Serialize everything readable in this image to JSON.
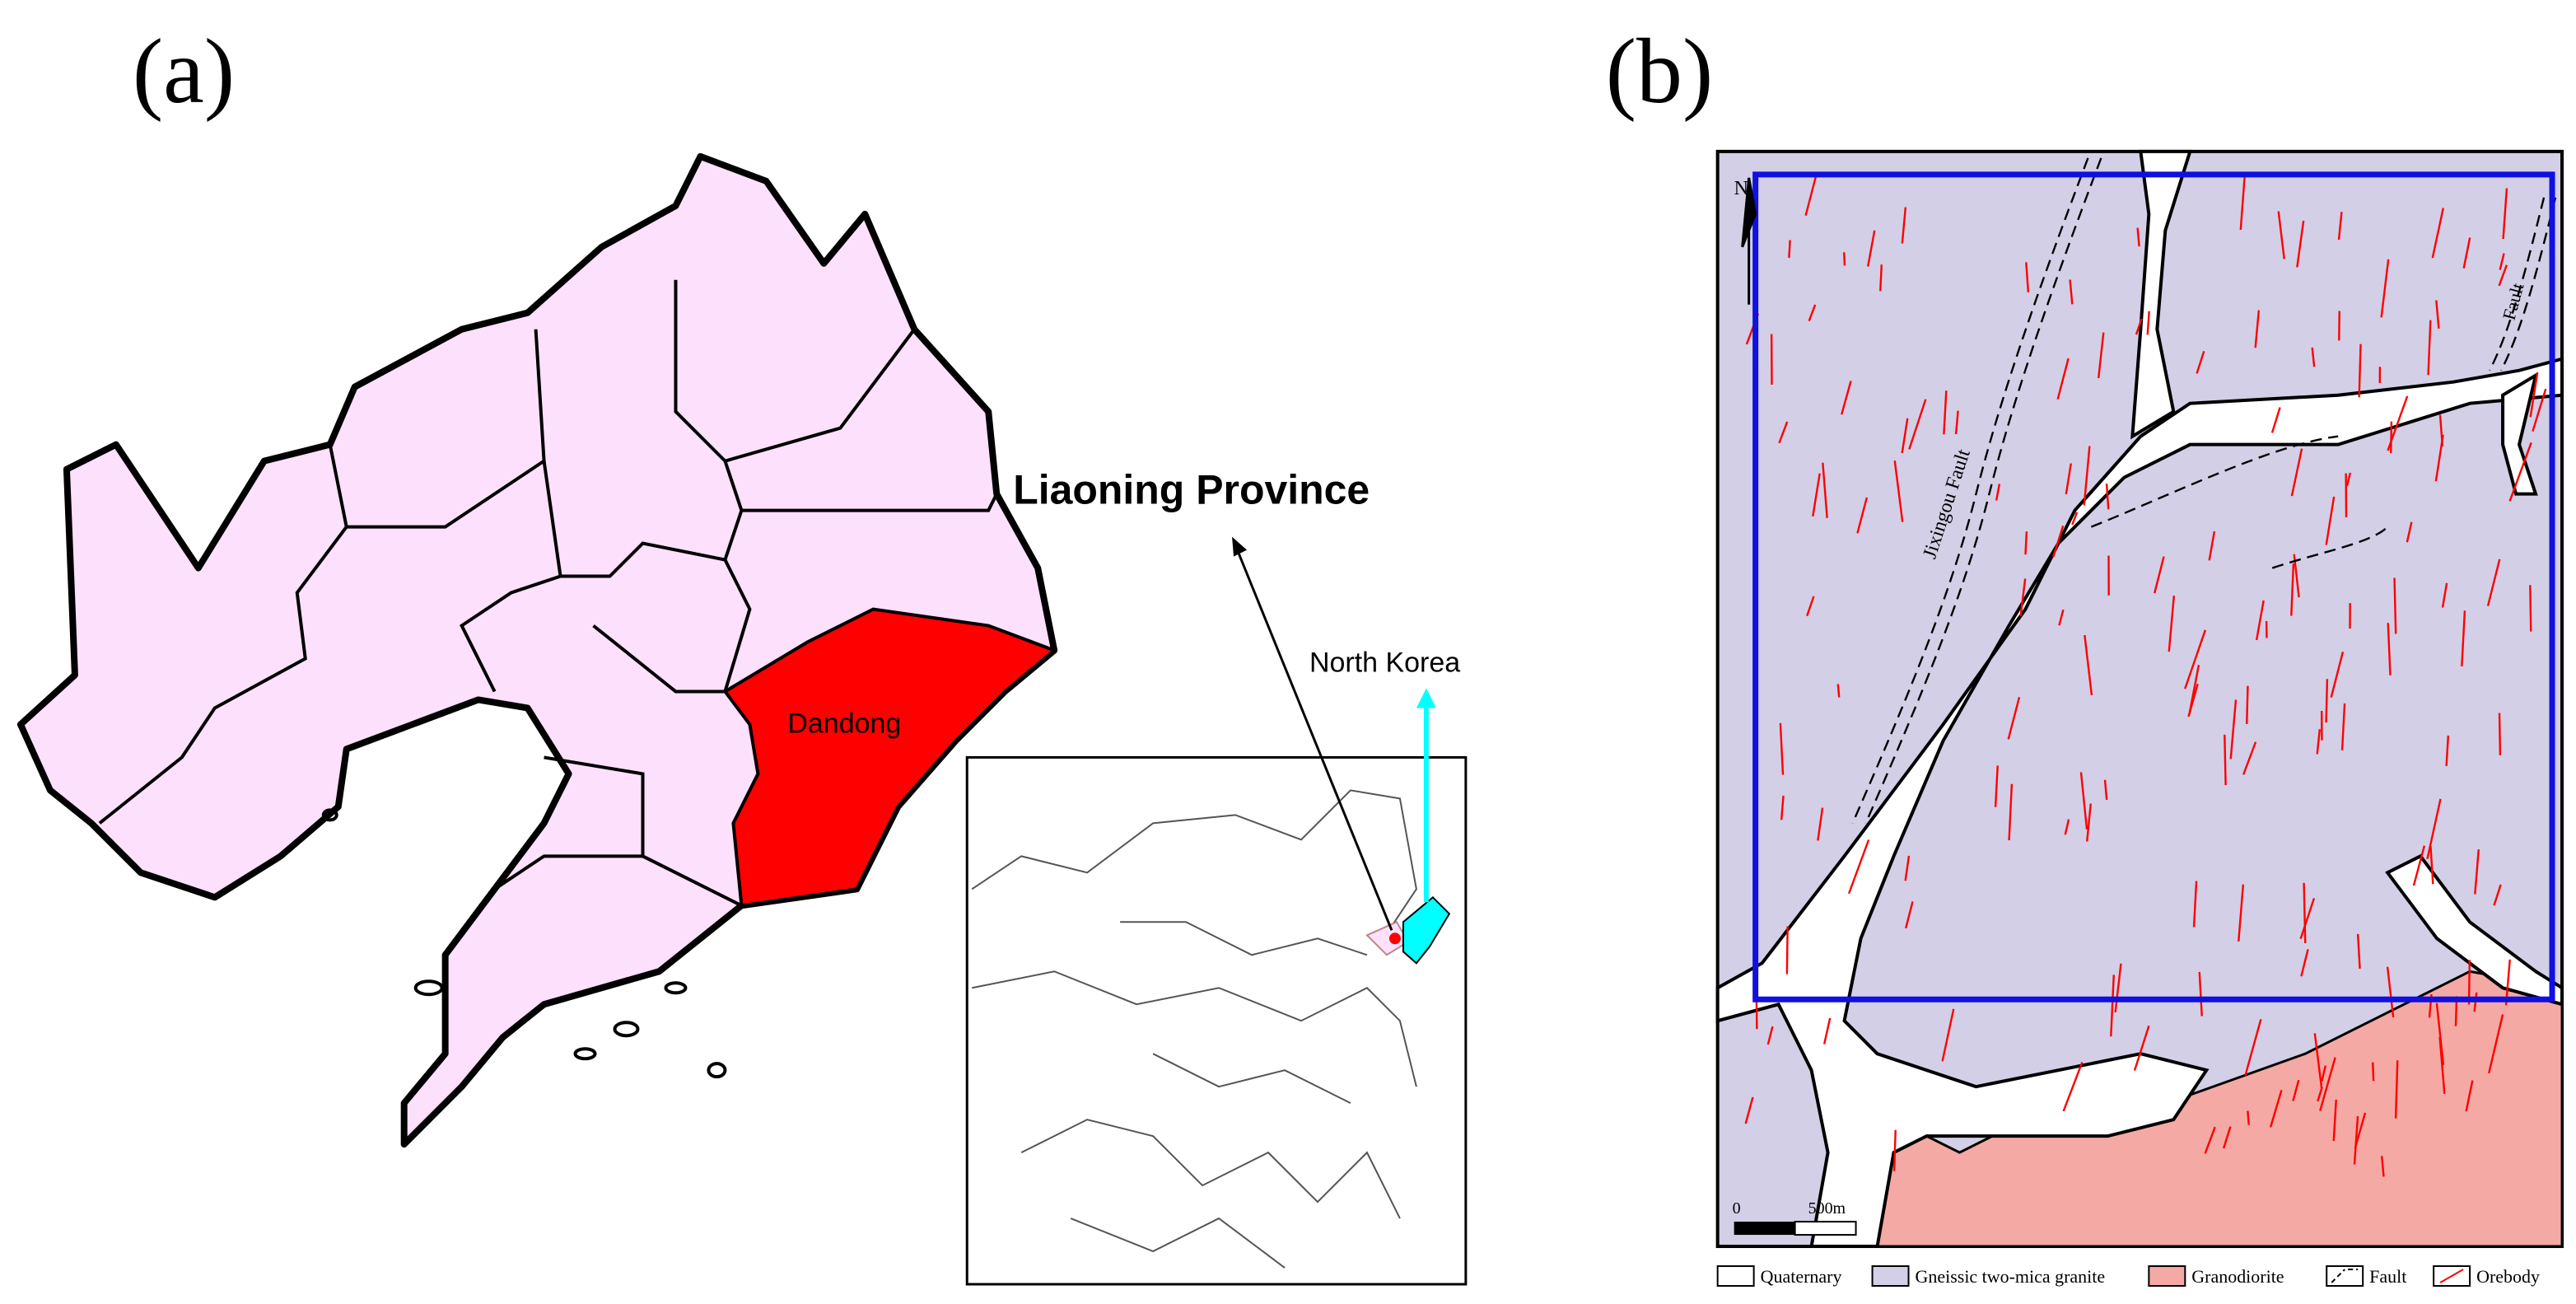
{
  "panel_a": {
    "label": "(a)",
    "title": "Liaoning Province",
    "region": "Dandong",
    "inset_label": "North Korea"
  },
  "panel_b": {
    "label": "(b)",
    "north": "N",
    "faults": [
      "Jixingou Fault",
      "Fault"
    ],
    "scale": {
      "start": "0",
      "end": "500m"
    },
    "legend": [
      "Quaternary",
      "Gneissic two-mica granite",
      "Granodiorite",
      "Fault",
      "Orebody"
    ]
  }
}
